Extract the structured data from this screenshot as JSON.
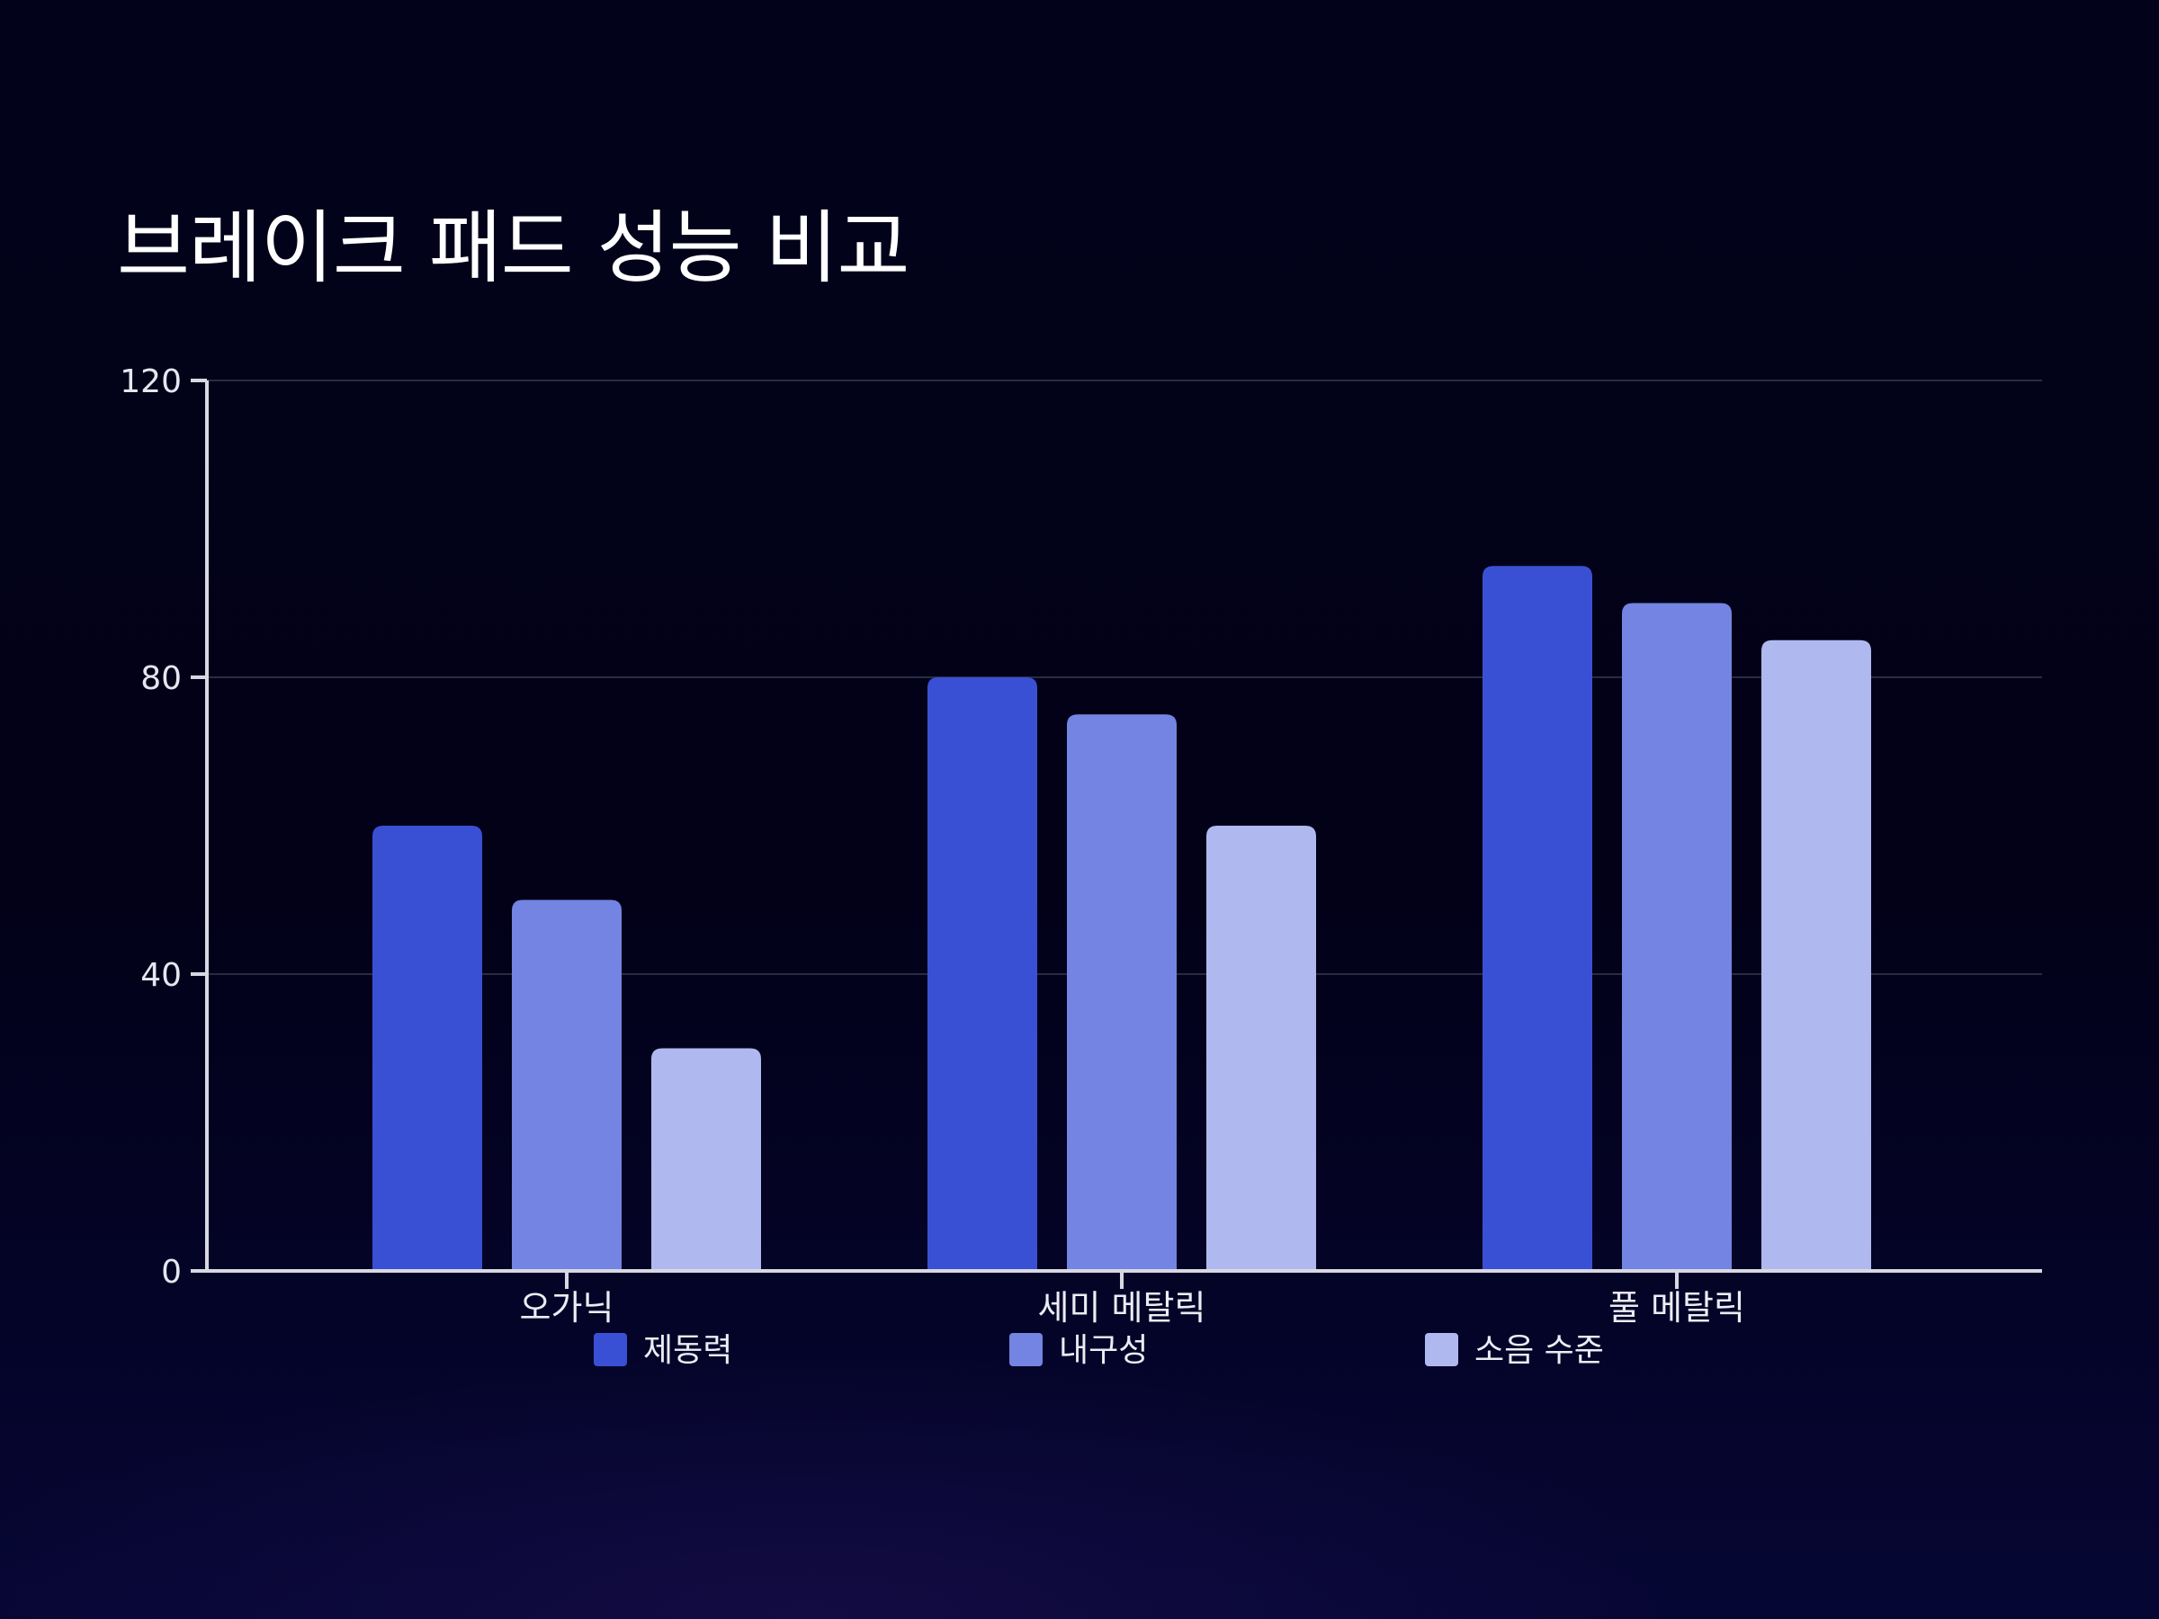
{
  "chart_data": {
    "type": "bar",
    "title": "브레이크 패드 성능 비교",
    "categories": [
      "오가닉",
      "세미 메탈릭",
      "풀 메탈릭"
    ],
    "series": [
      {
        "name": "제동력",
        "values": [
          60,
          80,
          95
        ],
        "color": "#3a50d4"
      },
      {
        "name": "내구성",
        "values": [
          50,
          75,
          90
        ],
        "color": "#7484e2"
      },
      {
        "name": "소음 수준",
        "values": [
          30,
          60,
          85
        ],
        "color": "#b0b9ef"
      }
    ],
    "ylim": [
      0,
      120
    ],
    "yticks": [
      0,
      40,
      80,
      120
    ],
    "grid": true,
    "legend": "bottom",
    "colors": {
      "background": "#02021a",
      "axis": "#d8d8e4",
      "grid": "#2a2a44",
      "text": "#e6e6f0"
    }
  }
}
